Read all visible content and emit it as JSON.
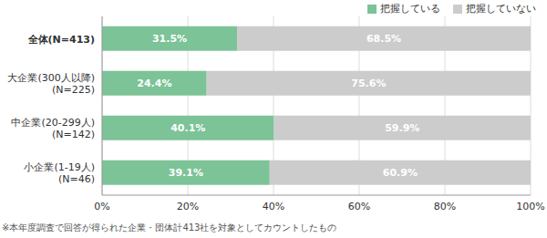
{
  "chart_data": {
    "type": "bar",
    "orientation": "horizontal",
    "stacked": true,
    "data_labels": true,
    "grid": true,
    "legend": "top-right",
    "categories": [
      "全体(N=413)",
      "大企業(300人以降)\n(N=225)",
      "中企業(20-299人)\n(N=142)",
      "小企業(1-19人)\n(N=46)"
    ],
    "series": [
      {
        "name": "把握している",
        "color": "#7cc397",
        "values": [
          31.5,
          24.4,
          40.1,
          39.1
        ],
        "value_labels": [
          "31.5%",
          "24.4%",
          "40.1%",
          "39.1%"
        ]
      },
      {
        "name": "把握していない",
        "color": "#cccccc",
        "values": [
          68.5,
          75.6,
          59.9,
          60.9
        ],
        "value_labels": [
          "68.5%",
          "75.6%",
          "59.9%",
          "60.9%"
        ]
      }
    ],
    "xlim": [
      0,
      100
    ],
    "xticks": [
      {
        "value": 0,
        "label": "0%"
      },
      {
        "value": 20,
        "label": "20%"
      },
      {
        "value": 40,
        "label": "40%"
      },
      {
        "value": 60,
        "label": "60%"
      },
      {
        "value": 80,
        "label": "80%"
      },
      {
        "value": 100,
        "label": "100%"
      }
    ],
    "footnote": "※本年度調査で回答が得られた企業・団体計413社を対象としてカウントしたもの"
  }
}
